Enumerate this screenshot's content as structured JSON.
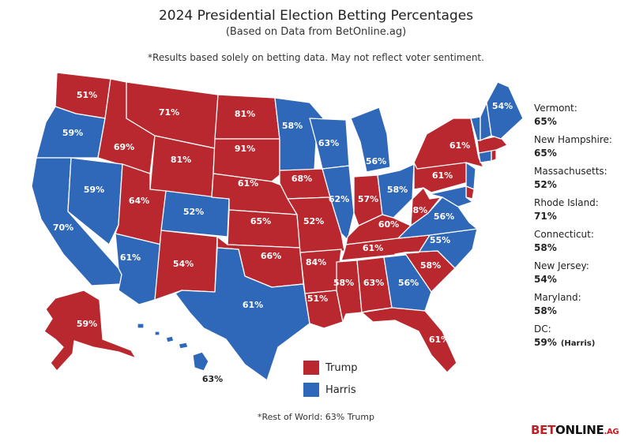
{
  "header": {
    "title": "2024 Presidential Election Betting Percentages",
    "subtitle": "(Based on Data from BetOnline.ag)",
    "disclaimer": "*Results based solely on betting data. May not reflect voter sentiment."
  },
  "colors": {
    "trump": "#b8282e",
    "harris": "#2f68b8"
  },
  "states": {
    "wa": {
      "label": "51%",
      "party": "trump"
    },
    "or": {
      "label": "59%",
      "party": "harris"
    },
    "ca": {
      "label": "70%",
      "party": "harris"
    },
    "id": {
      "label": "69%",
      "party": "trump"
    },
    "nv": {
      "label": "59%",
      "party": "harris"
    },
    "mt": {
      "label": "71%",
      "party": "trump"
    },
    "wy": {
      "label": "81%",
      "party": "trump"
    },
    "ut": {
      "label": "64%",
      "party": "trump"
    },
    "az": {
      "label": "61%",
      "party": "harris"
    },
    "co": {
      "label": "52%",
      "party": "harris"
    },
    "nm": {
      "label": "54%",
      "party": "trump"
    },
    "nd": {
      "label": "81%",
      "party": "trump"
    },
    "sd": {
      "label": "91%",
      "party": "trump"
    },
    "ne": {
      "label": "61%",
      "party": "trump"
    },
    "ks": {
      "label": "65%",
      "party": "trump"
    },
    "ok": {
      "label": "66%",
      "party": "trump"
    },
    "tx": {
      "label": "61%",
      "party": "harris"
    },
    "mn": {
      "label": "58%",
      "party": "harris"
    },
    "ia": {
      "label": "68%",
      "party": "trump"
    },
    "mo": {
      "label": "52%",
      "party": "trump"
    },
    "ar": {
      "label": "84%",
      "party": "trump"
    },
    "la": {
      "label": "51%",
      "party": "trump"
    },
    "wi": {
      "label": "63%",
      "party": "harris"
    },
    "il": {
      "label": "62%",
      "party": "harris"
    },
    "mi": {
      "label": "56%",
      "party": "harris"
    },
    "in": {
      "label": "57%",
      "party": "trump"
    },
    "oh": {
      "label": "58%",
      "party": "harris"
    },
    "ky": {
      "label": "60%",
      "party": "trump"
    },
    "tn": {
      "label": "61%",
      "party": "trump"
    },
    "ms": {
      "label": "58%",
      "party": "trump"
    },
    "al": {
      "label": "63%",
      "party": "trump"
    },
    "ga": {
      "label": "56%",
      "party": "harris"
    },
    "fl": {
      "label": "61%",
      "party": "trump"
    },
    "sc": {
      "label": "58%",
      "party": "trump"
    },
    "nc": {
      "label": "55%",
      "party": "harris"
    },
    "va": {
      "label": "56%",
      "party": "harris"
    },
    "wv": {
      "label": "68%",
      "party": "trump"
    },
    "pa": {
      "label": "61%",
      "party": "trump"
    },
    "ny": {
      "label": "61%",
      "party": "trump"
    },
    "me": {
      "label": "54%",
      "party": "harris"
    },
    "ak": {
      "label": "59%",
      "party": "trump"
    },
    "hi": {
      "label": "63%",
      "party": "harris"
    },
    "vt": {
      "party": "harris"
    },
    "nh": {
      "party": "harris"
    },
    "ma": {
      "party": "trump"
    },
    "ri": {
      "party": "trump"
    },
    "ct": {
      "party": "harris"
    },
    "nj": {
      "party": "harris"
    },
    "de": {
      "party": "trump"
    },
    "md": {
      "party": "harris"
    }
  },
  "small_states": [
    {
      "name": "Vermont:",
      "value": "65%"
    },
    {
      "name": "New Hampshire:",
      "value": "65%"
    },
    {
      "name": "Massachusetts:",
      "value": "52%"
    },
    {
      "name": "Rhode Island:",
      "value": "71%"
    },
    {
      "name": "Connecticut:",
      "value": "58%"
    },
    {
      "name": "New Jersey:",
      "value": "54%"
    },
    {
      "name": "Maryland:",
      "value": "58%"
    },
    {
      "name": "DC:",
      "value": "59%",
      "note": "(Harris)"
    }
  ],
  "legend": {
    "trump": "Trump",
    "harris": "Harris"
  },
  "footer": {
    "rest_of_world": "*Rest of World: 63% Trump",
    "brand_bet": "BET",
    "brand_online": "ONLINE",
    "brand_ag": ".AG"
  }
}
